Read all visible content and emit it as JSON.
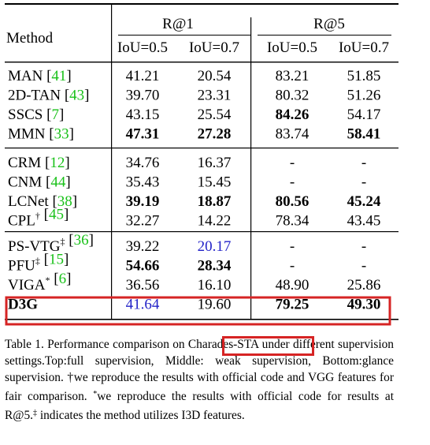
{
  "table": {
    "header": {
      "method": "Method",
      "groups": [
        "R@1",
        "R@5"
      ],
      "subcols": [
        "IoU=0.5",
        "IoU=0.7",
        "IoU=0.5",
        "IoU=0.7"
      ]
    },
    "sections": [
      {
        "rows": [
          {
            "name": "MAN",
            "sup": "",
            "ref": "41",
            "values": [
              "41.21",
              "20.54",
              "83.21",
              "51.85"
            ],
            "bold": [
              false,
              false,
              false,
              false
            ]
          },
          {
            "name": "2D-TAN",
            "sup": "",
            "ref": "43",
            "values": [
              "39.70",
              "23.31",
              "80.32",
              "51.26"
            ],
            "bold": [
              false,
              false,
              false,
              false
            ]
          },
          {
            "name": "SSCS",
            "sup": "",
            "ref": "7",
            "values": [
              "43.15",
              "25.54",
              "84.26",
              "54.17"
            ],
            "bold": [
              false,
              false,
              true,
              false
            ]
          },
          {
            "name": "MMN",
            "sup": "",
            "ref": "33",
            "values": [
              "47.31",
              "27.28",
              "83.74",
              "58.41"
            ],
            "bold": [
              true,
              true,
              false,
              true
            ]
          }
        ]
      },
      {
        "rows": [
          {
            "name": "CRM",
            "sup": "",
            "ref": "12",
            "values": [
              "34.76",
              "16.37",
              "-",
              "-"
            ],
            "bold": [
              false,
              false,
              false,
              false
            ]
          },
          {
            "name": "CNM",
            "sup": "",
            "ref": "44",
            "values": [
              "35.43",
              "15.45",
              "-",
              "-"
            ],
            "bold": [
              false,
              false,
              false,
              false
            ]
          },
          {
            "name": "LCNet",
            "sup": "",
            "ref": "38",
            "values": [
              "39.19",
              "18.87",
              "80.56",
              "45.24"
            ],
            "bold": [
              true,
              true,
              true,
              true
            ]
          },
          {
            "name": "CPL",
            "sup": "†",
            "ref": "45",
            "values": [
              "32.27",
              "14.22",
              "78.34",
              "43.45"
            ],
            "bold": [
              false,
              false,
              false,
              false
            ]
          }
        ]
      },
      {
        "rows": [
          {
            "name": "PS-VTG",
            "sup": "‡",
            "ref": "36",
            "values": [
              "39.22",
              "20.17",
              "-",
              "-"
            ],
            "bold": [
              false,
              false,
              false,
              false
            ],
            "blue": [
              false,
              true,
              false,
              false
            ]
          },
          {
            "name": "PFU",
            "sup": "‡",
            "ref": "15",
            "values": [
              "54.66",
              "28.34",
              "-",
              "-"
            ],
            "bold": [
              true,
              true,
              false,
              false
            ]
          },
          {
            "name": "VIGA",
            "sup": "*",
            "ref": "6",
            "values": [
              "36.56",
              "16.10",
              "48.90",
              "25.86"
            ],
            "bold": [
              false,
              false,
              false,
              false
            ]
          },
          {
            "name": "D3G",
            "sup": "",
            "ref": "",
            "values": [
              "41.64",
              "19.60",
              "79.25",
              "49.30"
            ],
            "bold": [
              false,
              false,
              true,
              true
            ],
            "blue": [
              true,
              false,
              false,
              false
            ],
            "name_bold": true
          }
        ]
      }
    ]
  },
  "caption": {
    "part1": "Table 1. Performance comparison on ",
    "highlight": "Charades-STA",
    "part2": " under different supervision settings.Top:full supervision, Middle: weak supervision, Bottom:glance supervision. †we reproduce the results with official code and VGG features for fair comparison. ",
    "star": "*",
    "part3": "we reproduce the results with official code for results at R@5.",
    "dagger2": "‡",
    "part4": " indicates the method utilizes I3D features."
  },
  "colors": {
    "ref_green": "#19c119",
    "second_blue": "#2323c8",
    "highlight_red": "#d62424"
  }
}
